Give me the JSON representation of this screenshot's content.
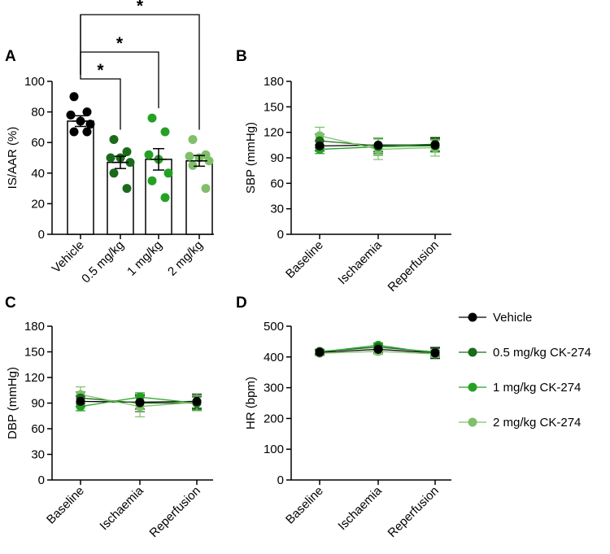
{
  "colors": {
    "vehicle": "#000000",
    "dose_05": "#1a6b1a",
    "dose_1": "#24a124",
    "dose_2": "#7fbf6a",
    "axis": "#000000",
    "bar_fill": "#ffffff"
  },
  "legend": {
    "items": [
      {
        "label": "Vehicle",
        "color": "#000000"
      },
      {
        "label": "0.5 mg/kg CK-274",
        "color": "#1a6b1a"
      },
      {
        "label": "1 mg/kg CK-274",
        "color": "#24a124"
      },
      {
        "label": "2 mg/kg CK-274",
        "color": "#7fbf6a"
      }
    ]
  },
  "chart_data": [
    {
      "panel": "A",
      "type": "bar",
      "ylabel": "IS/AAR (%)",
      "ylim": [
        0,
        100
      ],
      "yticks": [
        0,
        20,
        40,
        60,
        80,
        100
      ],
      "categories": [
        "Vehicle",
        "0.5 mg/kg",
        "1 mg/kg",
        "2 mg/kg"
      ],
      "values": [
        74,
        47,
        49,
        48
      ],
      "sem": [
        3.5,
        4,
        7,
        3.5
      ],
      "points": [
        [
          90,
          80,
          78,
          74,
          72,
          67,
          67
        ],
        [
          62,
          54,
          50,
          50,
          47,
          40,
          30
        ],
        [
          76,
          67,
          52,
          49,
          40,
          35,
          24
        ],
        [
          62,
          52,
          51,
          50,
          48,
          45,
          30
        ]
      ],
      "significance": [
        {
          "from": "Vehicle",
          "to": "0.5 mg/kg",
          "label": "*"
        },
        {
          "from": "Vehicle",
          "to": "1 mg/kg",
          "label": "*"
        },
        {
          "from": "Vehicle",
          "to": "2 mg/kg",
          "label": "*"
        }
      ]
    },
    {
      "panel": "B",
      "type": "line",
      "ylabel": "SBP (mmHg)",
      "ylim": [
        0,
        180
      ],
      "yticks": [
        0,
        30,
        60,
        90,
        120,
        150,
        180
      ],
      "x": [
        "Baseline",
        "Ischaemia",
        "Reperfusion"
      ],
      "series": [
        {
          "values": [
            104,
            105,
            105
          ],
          "error": [
            6,
            8,
            8
          ]
        },
        {
          "values": [
            110,
            104,
            106
          ],
          "error": [
            8,
            9,
            8
          ]
        },
        {
          "values": [
            100,
            103,
            104
          ],
          "error": [
            5,
            10,
            7
          ]
        },
        {
          "values": [
            116,
            100,
            102
          ],
          "error": [
            10,
            12,
            10
          ]
        }
      ]
    },
    {
      "panel": "C",
      "type": "line",
      "ylabel": "DBP (mmHg)",
      "ylim": [
        0,
        180
      ],
      "yticks": [
        0,
        30,
        60,
        90,
        120,
        150,
        180
      ],
      "x": [
        "Baseline",
        "Ischaemia",
        "Reperfusion"
      ],
      "series": [
        {
          "values": [
            92,
            91,
            92
          ],
          "error": [
            6,
            8,
            8
          ]
        },
        {
          "values": [
            96,
            90,
            90
          ],
          "error": [
            7,
            10,
            8
          ]
        },
        {
          "values": [
            86,
            97,
            90
          ],
          "error": [
            5,
            5,
            7
          ]
        },
        {
          "values": [
            100,
            86,
            91
          ],
          "error": [
            9,
            12,
            10
          ]
        }
      ]
    },
    {
      "panel": "D",
      "type": "line",
      "ylabel": "HR (bpm)",
      "ylim": [
        0,
        500
      ],
      "yticks": [
        0,
        100,
        200,
        300,
        400,
        500
      ],
      "x": [
        "Baseline",
        "Ischaemia",
        "Reperfusion"
      ],
      "series": [
        {
          "values": [
            415,
            425,
            413
          ],
          "error": [
            8,
            12,
            18
          ]
        },
        {
          "values": [
            418,
            432,
            416
          ],
          "error": [
            7,
            10,
            12
          ]
        },
        {
          "values": [
            416,
            438,
            412
          ],
          "error": [
            6,
            8,
            10
          ]
        },
        {
          "values": [
            412,
            418,
            410
          ],
          "error": [
            8,
            10,
            12
          ]
        }
      ]
    }
  ]
}
